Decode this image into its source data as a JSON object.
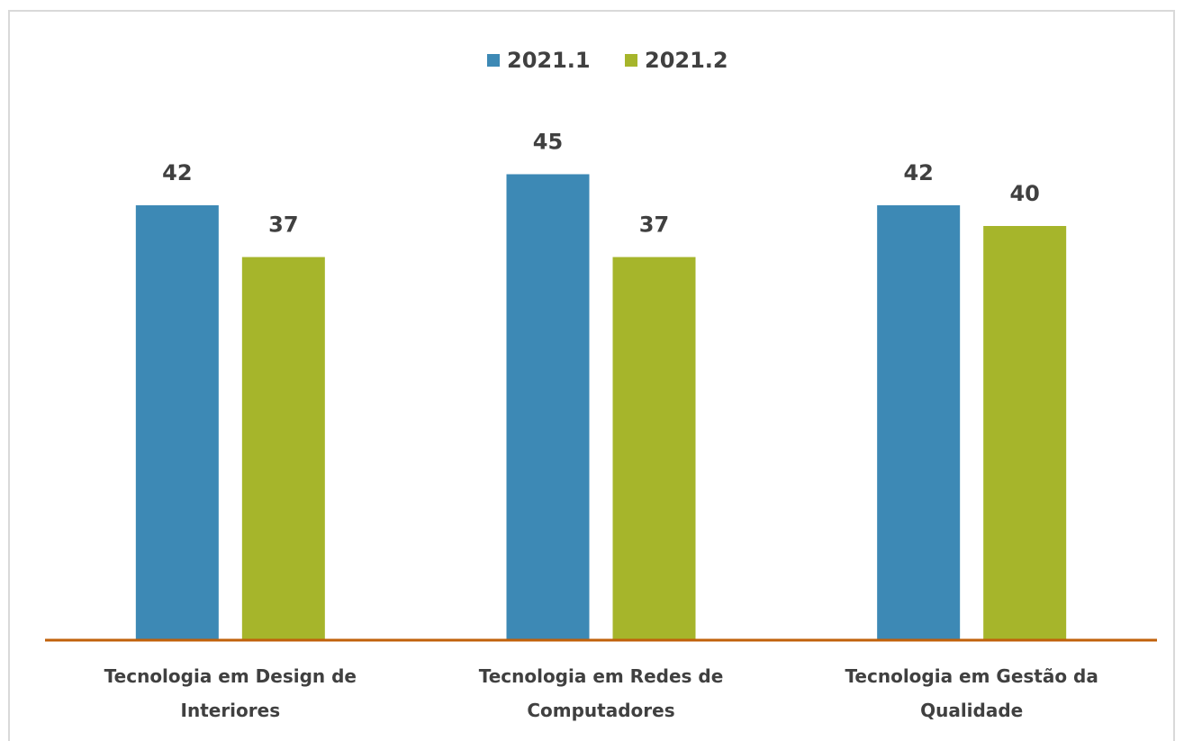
{
  "chart_data": {
    "type": "bar",
    "categories": [
      "Tecnologia em Design de Interiores",
      "Tecnologia em Redes de Computadores",
      "Tecnologia em Gestão da Qualidade"
    ],
    "series": [
      {
        "name": "2021.1",
        "color": "#3d89b5",
        "values": [
          42,
          45,
          42
        ]
      },
      {
        "name": "2021.2",
        "color": "#a6b52b",
        "values": [
          37,
          37,
          40
        ]
      }
    ],
    "ylim": [
      0,
      50
    ],
    "legend": "top"
  }
}
